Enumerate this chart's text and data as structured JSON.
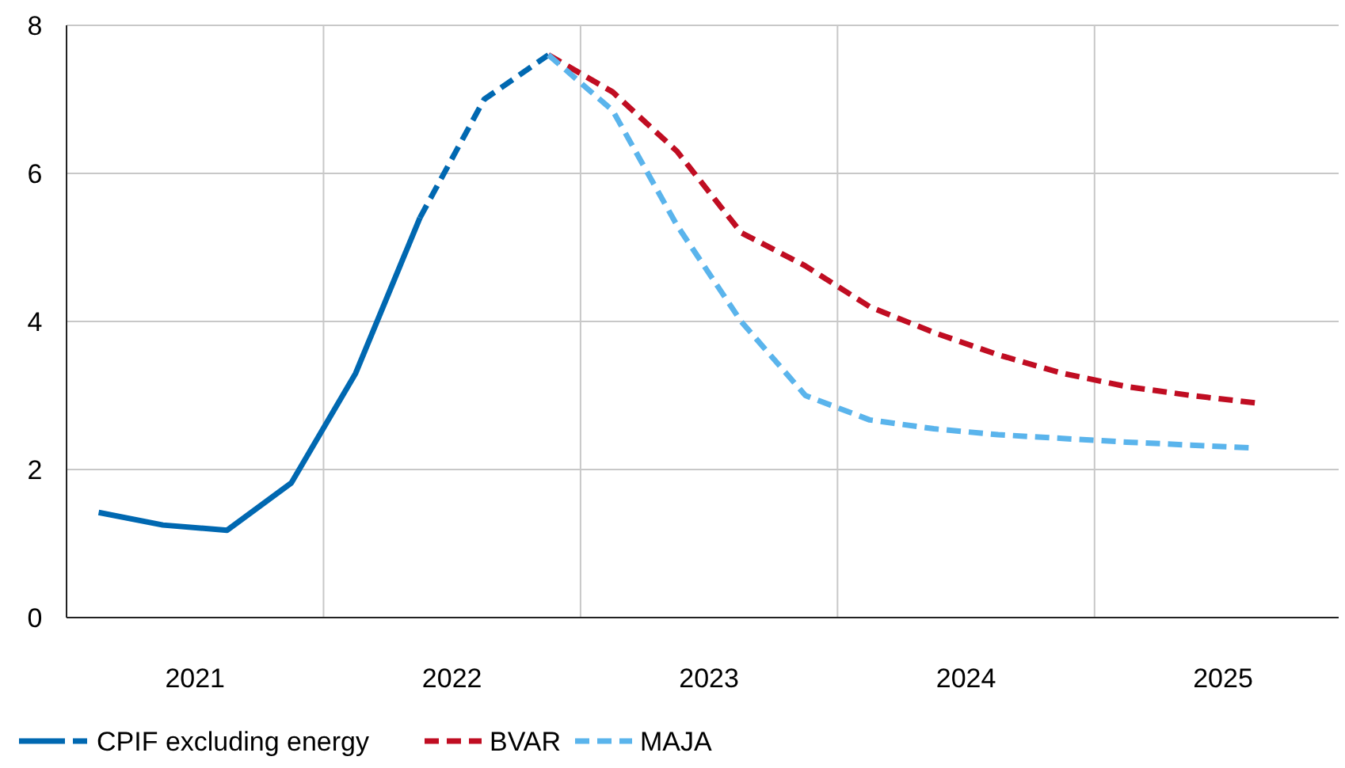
{
  "chart_data": {
    "type": "line",
    "xlim": [
      2021,
      2025.95
    ],
    "xticks": [
      {
        "value": 2021.5,
        "label": "2021"
      },
      {
        "value": 2022,
        "label": null
      },
      {
        "value": 2022.5,
        "label": "2022"
      },
      {
        "value": 2023,
        "label": null
      },
      {
        "value": 2023.5,
        "label": "2023"
      },
      {
        "value": 2024,
        "label": null
      },
      {
        "value": 2024.5,
        "label": "2024"
      },
      {
        "value": 2025,
        "label": null
      },
      {
        "value": 2025.5,
        "label": "2025"
      }
    ],
    "ylim": [
      0,
      8
    ],
    "yticks": [
      0,
      2,
      4,
      6,
      8
    ],
    "grid": true,
    "legend": "bottom",
    "series": [
      {
        "name": "CPIF excluding energy",
        "color": "#0068b1",
        "line_style": "solid",
        "x": [
          2021.125,
          2021.375,
          2021.625,
          2021.875,
          2022.125,
          2022.375
        ],
        "values": [
          1.42,
          1.25,
          1.18,
          1.82,
          3.3,
          5.4
        ]
      },
      {
        "color": "#0068b1",
        "line_style": "dashed",
        "x": [
          2022.375,
          2022.625,
          2022.875
        ],
        "values": [
          5.4,
          7.0,
          7.6
        ]
      },
      {
        "name": "BVAR",
        "color": "#c00d22",
        "line_style": "dashed",
        "x": [
          2022.875,
          2023.125,
          2023.375,
          2023.625,
          2023.875,
          2024.125,
          2024.375,
          2024.625,
          2024.875,
          2025.125,
          2025.375,
          2025.625
        ],
        "values": [
          7.6,
          7.1,
          6.3,
          5.2,
          4.75,
          4.2,
          3.85,
          3.55,
          3.3,
          3.12,
          3.0,
          2.9
        ]
      },
      {
        "name": "MAJA",
        "color": "#5ab4ec",
        "line_style": "dashed",
        "x": [
          2022.875,
          2023.125,
          2023.375,
          2023.625,
          2023.875,
          2024.125,
          2024.375,
          2024.625,
          2024.875,
          2025.125,
          2025.375,
          2025.625
        ],
        "values": [
          7.6,
          6.85,
          5.3,
          4.0,
          3.0,
          2.67,
          2.55,
          2.47,
          2.42,
          2.37,
          2.33,
          2.29
        ]
      }
    ]
  }
}
